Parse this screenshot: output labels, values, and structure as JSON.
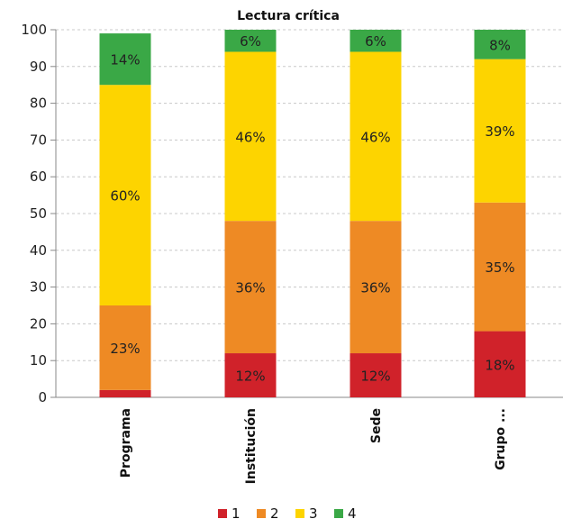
{
  "chart_data": {
    "type": "bar",
    "stacked": true,
    "title": "Lectura crítica",
    "xlabel": "",
    "ylabel": "",
    "ylim": [
      0,
      100
    ],
    "yticks": [
      0,
      10,
      20,
      30,
      40,
      50,
      60,
      70,
      80,
      90,
      100
    ],
    "grid": true,
    "legend_position": "bottom",
    "categories": [
      "Programa",
      "Institución",
      "Sede",
      "Grupo ..."
    ],
    "series": [
      {
        "name": "1",
        "color": "#d0222a",
        "values": [
          2,
          12,
          12,
          18
        ],
        "labels": [
          "",
          "12%",
          "12%",
          "18%"
        ]
      },
      {
        "name": "2",
        "color": "#ee8a24",
        "values": [
          23,
          36,
          36,
          35
        ],
        "labels": [
          "23%",
          "36%",
          "36%",
          "35%"
        ]
      },
      {
        "name": "3",
        "color": "#fdd400",
        "values": [
          60,
          46,
          46,
          39
        ],
        "labels": [
          "60%",
          "46%",
          "46%",
          "39%"
        ]
      },
      {
        "name": "4",
        "color": "#3aa846",
        "values": [
          14,
          6,
          6,
          8
        ],
        "labels": [
          "14%",
          "6%",
          "6%",
          "8%"
        ]
      }
    ]
  }
}
